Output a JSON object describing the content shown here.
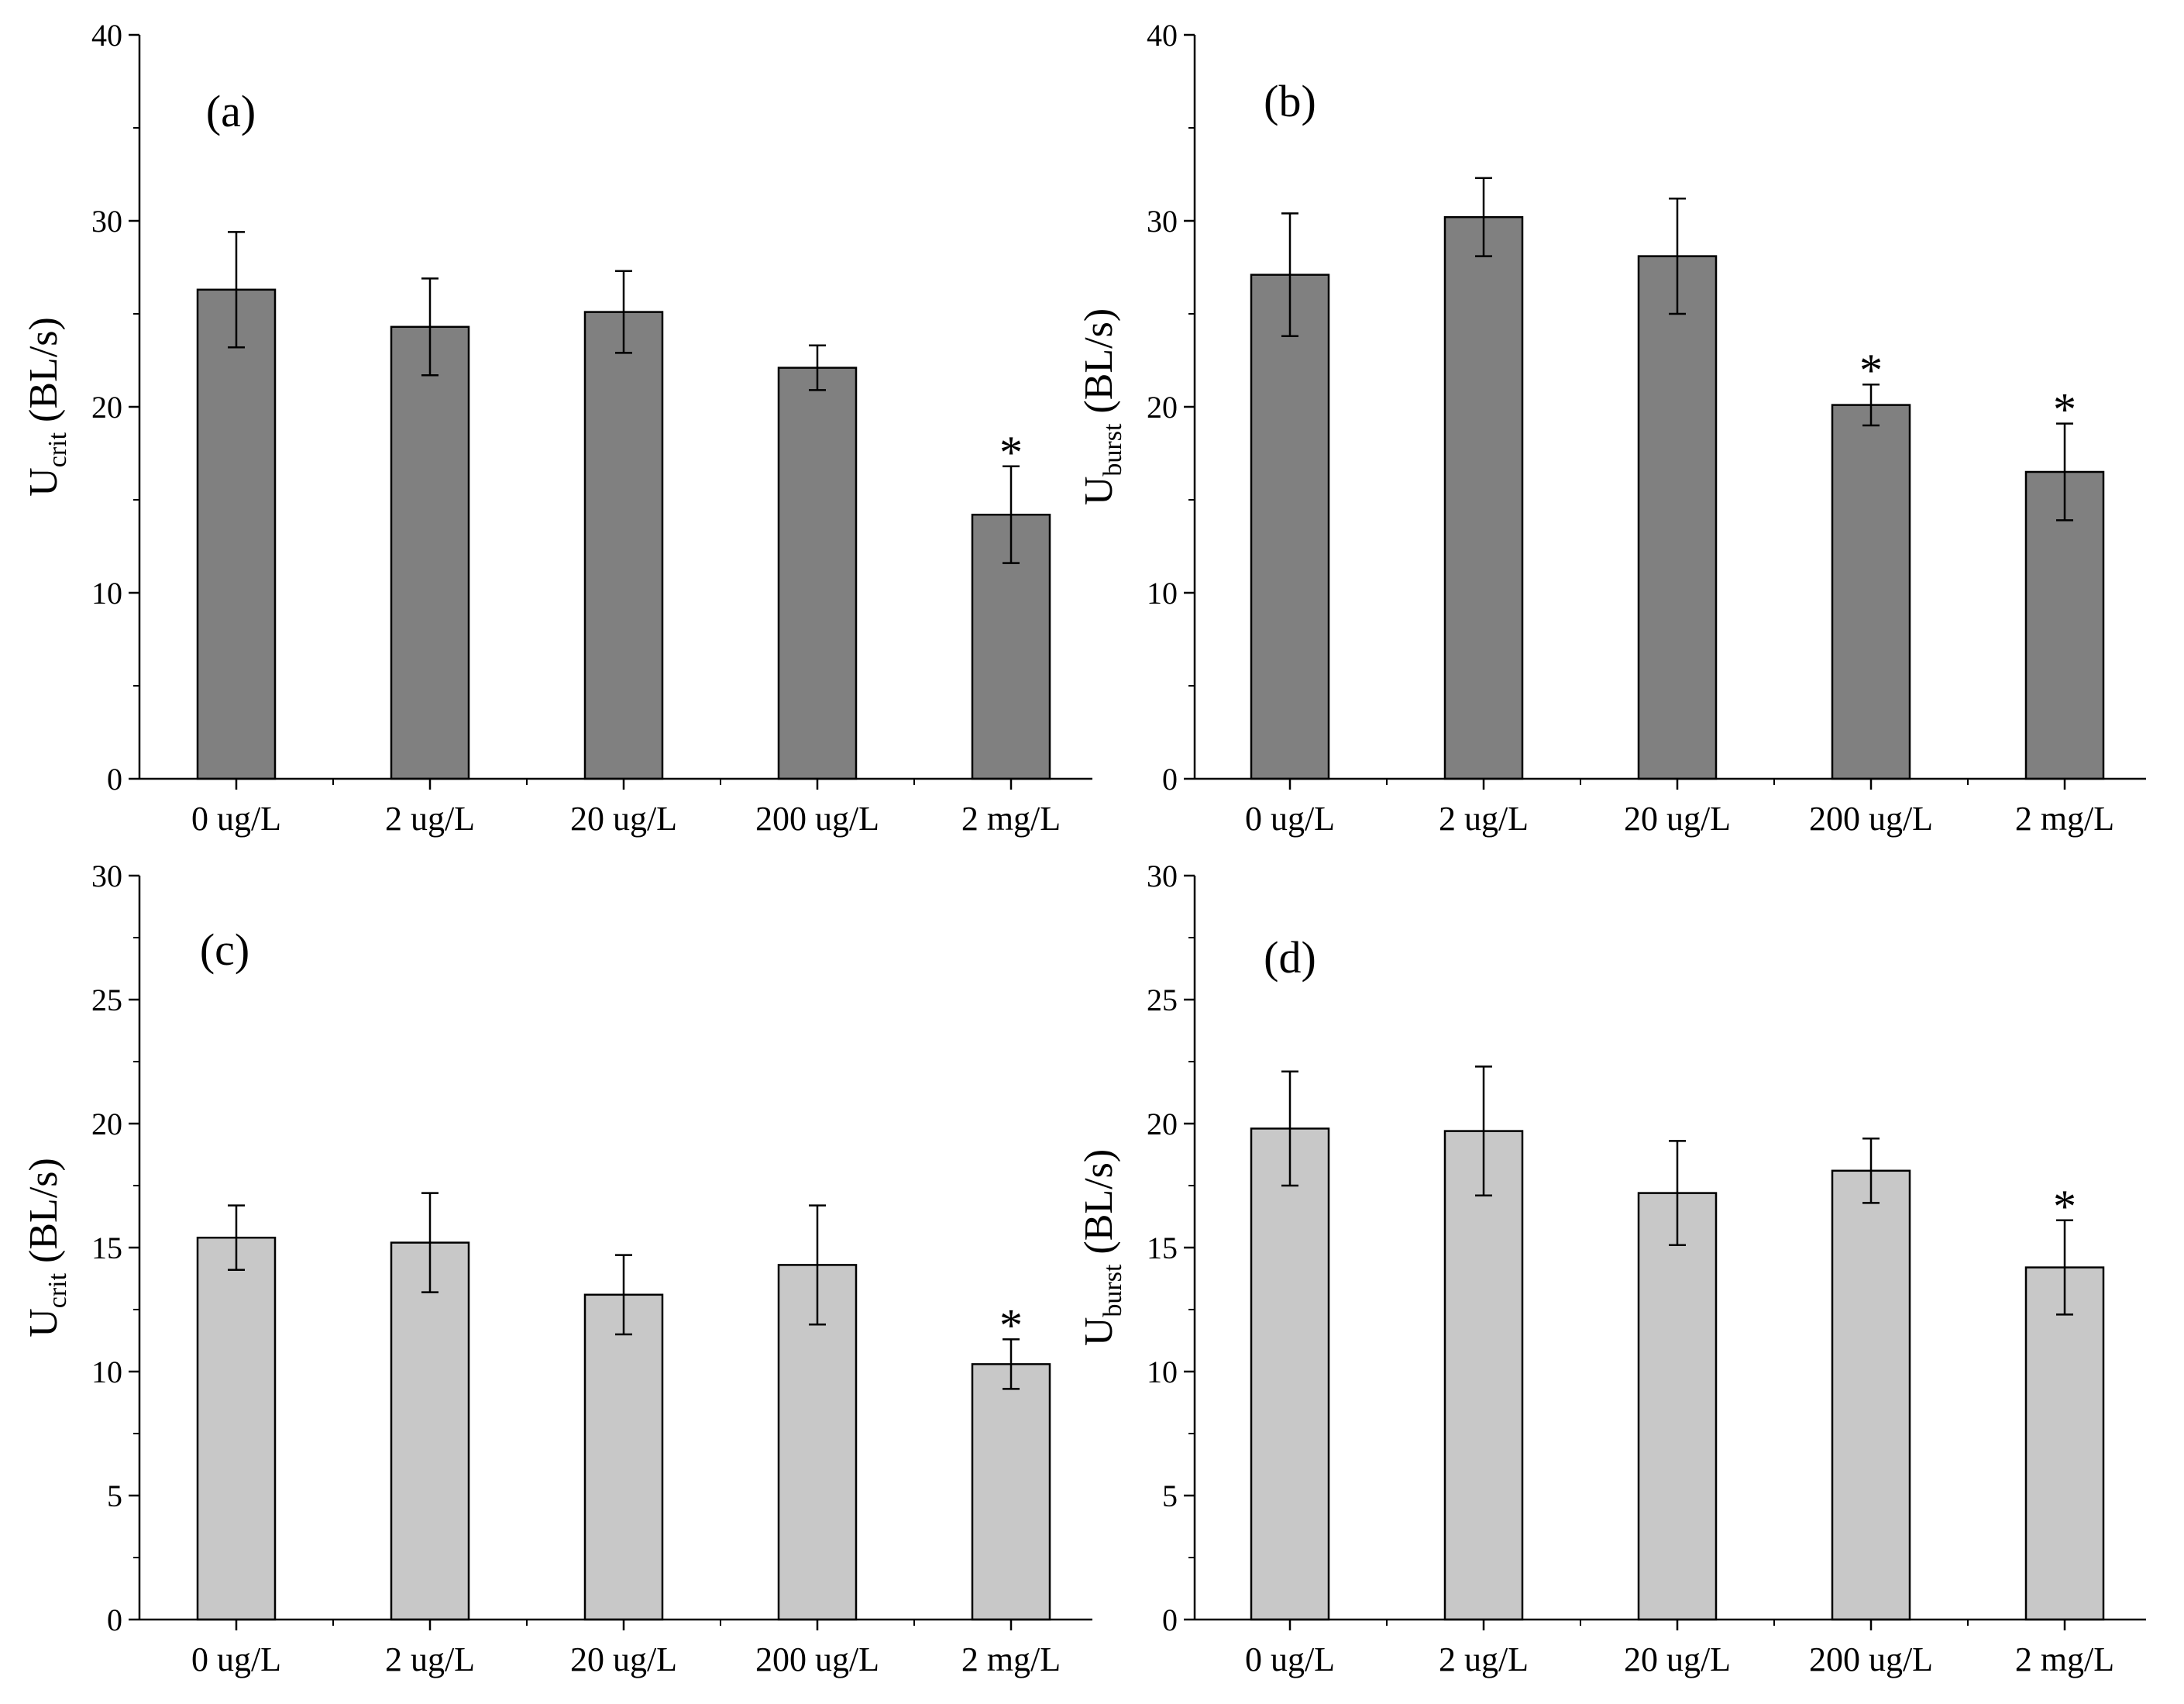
{
  "colors": {
    "dark_bar": "#808080",
    "light_bar": "#c8c8c8",
    "axis": "#000000"
  },
  "chart_data": [
    {
      "type": "bar",
      "panel_label": "(a)",
      "ylabel": {
        "main": "U",
        "sub": "crit",
        "unit": "(BL/s)"
      },
      "categories": [
        "0 ug/L",
        "2 ug/L",
        "20 ug/L",
        "200 ug/L",
        "2 mg/L"
      ],
      "values": [
        26.3,
        24.3,
        25.1,
        22.1,
        14.2
      ],
      "errors": [
        3.1,
        2.6,
        2.2,
        1.2,
        2.6
      ],
      "significance": [
        "",
        "",
        "",
        "",
        "*"
      ],
      "ylim": [
        0,
        40
      ],
      "yticks": [
        0,
        10,
        20,
        30,
        40
      ],
      "bar_color": "#808080"
    },
    {
      "type": "bar",
      "panel_label": "(b)",
      "ylabel": {
        "main": "U",
        "sub": "burst",
        "unit": "(BL/s)"
      },
      "categories": [
        "0 ug/L",
        "2 ug/L",
        "20 ug/L",
        "200 ug/L",
        "2 mg/L"
      ],
      "values": [
        27.1,
        30.2,
        28.1,
        20.1,
        16.5
      ],
      "errors": [
        3.3,
        2.1,
        3.1,
        1.1,
        2.6
      ],
      "significance": [
        "",
        "",
        "",
        "*",
        "*"
      ],
      "ylim": [
        0,
        40
      ],
      "yticks": [
        0,
        10,
        20,
        30,
        40
      ],
      "bar_color": "#808080"
    },
    {
      "type": "bar",
      "panel_label": "(c)",
      "ylabel": {
        "main": "U",
        "sub": "crit",
        "unit": "(BL/s)"
      },
      "categories": [
        "0 ug/L",
        "2 ug/L",
        "20 ug/L",
        "200 ug/L",
        "2 mg/L"
      ],
      "values": [
        15.4,
        15.2,
        13.1,
        14.3,
        10.3
      ],
      "errors": [
        1.3,
        2.0,
        1.6,
        2.4,
        1.0
      ],
      "significance": [
        "",
        "",
        "",
        "",
        "*"
      ],
      "ylim": [
        0,
        30
      ],
      "yticks": [
        0,
        5,
        10,
        15,
        20,
        25,
        30
      ],
      "bar_color": "#c8c8c8"
    },
    {
      "type": "bar",
      "panel_label": "(d)",
      "ylabel": {
        "main": "U",
        "sub": "burst",
        "unit": "(BL/s)"
      },
      "categories": [
        "0 ug/L",
        "2 ug/L",
        "20 ug/L",
        "200 ug/L",
        "2 mg/L"
      ],
      "values": [
        19.8,
        19.7,
        17.2,
        18.1,
        14.2
      ],
      "errors": [
        2.3,
        2.6,
        2.1,
        1.3,
        1.9
      ],
      "significance": [
        "",
        "",
        "",
        "",
        "*"
      ],
      "ylim": [
        0,
        30
      ],
      "yticks": [
        0,
        5,
        10,
        15,
        20,
        25,
        30
      ],
      "bar_color": "#c8c8c8"
    }
  ]
}
